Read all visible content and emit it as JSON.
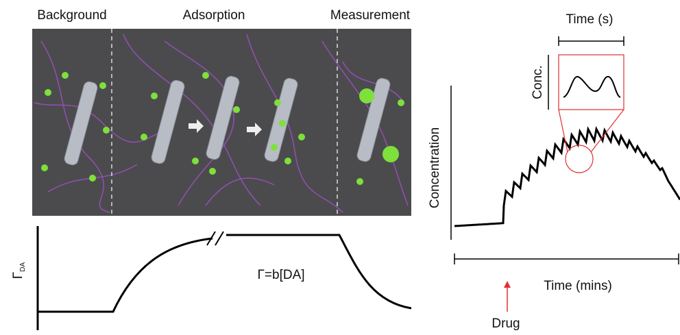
{
  "panel_labels": [
    "Background",
    "Adsorption",
    "Measurement"
  ],
  "left_plot": {
    "y_label": "Γ",
    "y_label_subscript": "DA",
    "equation": "Γ=b[DA]"
  },
  "right_plot": {
    "y_label": "Concentration",
    "x_label": "Time (mins)",
    "arrow_label": "Drug",
    "inset": {
      "x_label": "Time (s)",
      "y_label": "Conc."
    }
  }
}
